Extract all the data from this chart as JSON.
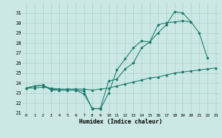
{
  "line1_x": [
    0,
    1,
    2,
    3,
    4,
    5,
    6,
    7,
    8,
    9,
    10,
    11,
    12,
    13,
    14,
    15,
    16,
    17,
    18,
    19,
    20,
    21,
    22
  ],
  "line1_y": [
    23.5,
    23.7,
    23.8,
    23.3,
    23.3,
    23.3,
    23.3,
    22.9,
    21.5,
    21.4,
    23.0,
    25.3,
    26.4,
    27.5,
    28.2,
    28.1,
    29.0,
    29.8,
    31.1,
    31.0,
    30.1,
    29.0,
    26.5
  ],
  "line2_x": [
    0,
    1,
    2,
    3,
    4,
    5,
    6,
    7,
    8,
    9,
    10,
    11,
    12,
    13,
    14,
    15,
    16,
    17,
    18,
    19,
    20
  ],
  "line2_y": [
    23.5,
    23.7,
    23.8,
    23.4,
    23.3,
    23.3,
    23.3,
    23.2,
    21.4,
    21.5,
    24.2,
    24.4,
    25.4,
    26.0,
    27.5,
    28.1,
    29.8,
    30.0,
    30.1,
    30.2,
    30.1
  ],
  "line3_x": [
    0,
    1,
    2,
    3,
    4,
    5,
    6,
    7,
    8,
    9,
    10,
    11,
    12,
    13,
    14,
    15,
    16,
    17,
    18,
    19,
    20,
    21,
    22,
    23
  ],
  "line3_y": [
    23.5,
    23.5,
    23.6,
    23.5,
    23.4,
    23.4,
    23.4,
    23.4,
    23.3,
    23.4,
    23.5,
    23.7,
    23.9,
    24.1,
    24.3,
    24.5,
    24.6,
    24.8,
    25.0,
    25.1,
    25.2,
    25.3,
    25.4,
    25.5
  ],
  "color": "#1a7a6e",
  "bg_color": "#cce8e4",
  "grid_color": "#aacfca",
  "xlabel": "Humidex (Indice chaleur)",
  "ylim": [
    21,
    32
  ],
  "xlim": [
    -0.5,
    23.5
  ],
  "yticks": [
    21,
    22,
    23,
    24,
    25,
    26,
    27,
    28,
    29,
    30,
    31
  ],
  "xticks": [
    0,
    1,
    2,
    3,
    4,
    5,
    6,
    7,
    8,
    9,
    10,
    11,
    12,
    13,
    14,
    15,
    16,
    17,
    18,
    19,
    20,
    21,
    22,
    23
  ]
}
